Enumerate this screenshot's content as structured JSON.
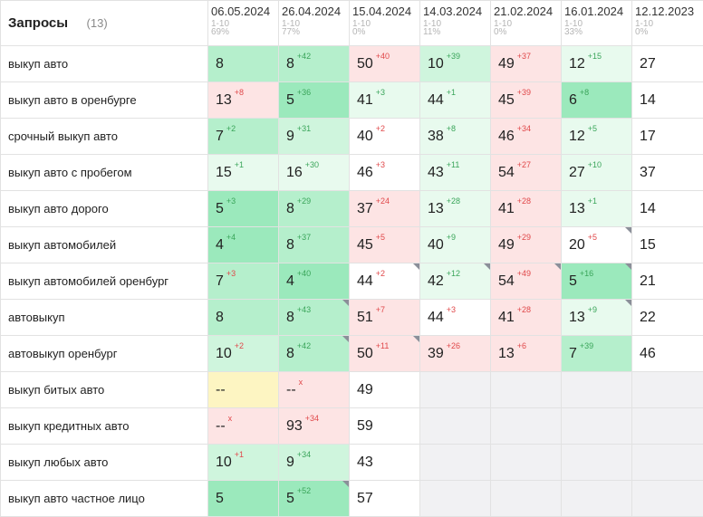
{
  "header": {
    "title": "Запросы",
    "count": "(13)",
    "dates": [
      {
        "date": "06.05.2024",
        "range": "1-10",
        "pct": "69%"
      },
      {
        "date": "26.04.2024",
        "range": "1-10",
        "pct": "77%"
      },
      {
        "date": "15.04.2024",
        "range": "1-10",
        "pct": "0%"
      },
      {
        "date": "14.03.2024",
        "range": "1-10",
        "pct": "11%"
      },
      {
        "date": "21.02.2024",
        "range": "1-10",
        "pct": "0%"
      },
      {
        "date": "16.01.2024",
        "range": "1-10",
        "pct": "33%"
      },
      {
        "date": "12.12.2023",
        "range": "1-10",
        "pct": "0%"
      }
    ]
  },
  "colors": {
    "light_green": "#e8faee",
    "green": "#cff5dd",
    "green_mid": "#b5efcc",
    "green_strong": "#9be9bc",
    "red_bg": "#fde4e4",
    "yellow_bg": "#fdf5c2",
    "empty_bg": "#f1f1f3",
    "delta_up": "#3aa55a",
    "delta_down": "#e0484a"
  },
  "rows": [
    {
      "query": "выкуп авто",
      "cells": [
        {
          "p": "8",
          "c": "g3"
        },
        {
          "p": "8",
          "d": "+42",
          "dir": "up",
          "c": "g3"
        },
        {
          "p": "50",
          "d": "+40",
          "dir": "dn",
          "c": "r"
        },
        {
          "p": "10",
          "d": "+39",
          "dir": "up",
          "c": "g2"
        },
        {
          "p": "49",
          "d": "+37",
          "dir": "dn",
          "c": "r"
        },
        {
          "p": "12",
          "d": "+15",
          "dir": "up",
          "c": "g1"
        },
        {
          "p": "27",
          "c": "w"
        }
      ]
    },
    {
      "query": "выкуп авто в оренбурге",
      "cells": [
        {
          "p": "13",
          "d": "+8",
          "dir": "dn",
          "c": "r"
        },
        {
          "p": "5",
          "d": "+36",
          "dir": "up",
          "c": "g4"
        },
        {
          "p": "41",
          "d": "+3",
          "dir": "up",
          "c": "g1"
        },
        {
          "p": "44",
          "d": "+1",
          "dir": "up",
          "c": "g1"
        },
        {
          "p": "45",
          "d": "+39",
          "dir": "dn",
          "c": "r"
        },
        {
          "p": "6",
          "d": "+8",
          "dir": "up",
          "c": "g4"
        },
        {
          "p": "14",
          "c": "w"
        }
      ]
    },
    {
      "query": "срочный выкуп авто",
      "cells": [
        {
          "p": "7",
          "d": "+2",
          "dir": "up",
          "c": "g3"
        },
        {
          "p": "9",
          "d": "+31",
          "dir": "up",
          "c": "g2"
        },
        {
          "p": "40",
          "d": "+2",
          "dir": "dn",
          "c": "w"
        },
        {
          "p": "38",
          "d": "+8",
          "dir": "up",
          "c": "g1"
        },
        {
          "p": "46",
          "d": "+34",
          "dir": "dn",
          "c": "r"
        },
        {
          "p": "12",
          "d": "+5",
          "dir": "up",
          "c": "g1"
        },
        {
          "p": "17",
          "c": "w"
        }
      ]
    },
    {
      "query": "выкуп авто с пробегом",
      "cells": [
        {
          "p": "15",
          "d": "+1",
          "dir": "up",
          "c": "g1"
        },
        {
          "p": "16",
          "d": "+30",
          "dir": "up",
          "c": "g1"
        },
        {
          "p": "46",
          "d": "+3",
          "dir": "dn",
          "c": "w"
        },
        {
          "p": "43",
          "d": "+11",
          "dir": "up",
          "c": "g1"
        },
        {
          "p": "54",
          "d": "+27",
          "dir": "dn",
          "c": "r"
        },
        {
          "p": "27",
          "d": "+10",
          "dir": "up",
          "c": "g1"
        },
        {
          "p": "37",
          "c": "w"
        }
      ]
    },
    {
      "query": "выкуп авто дорого",
      "cells": [
        {
          "p": "5",
          "d": "+3",
          "dir": "up",
          "c": "g4"
        },
        {
          "p": "8",
          "d": "+29",
          "dir": "up",
          "c": "g3"
        },
        {
          "p": "37",
          "d": "+24",
          "dir": "dn",
          "c": "r"
        },
        {
          "p": "13",
          "d": "+28",
          "dir": "up",
          "c": "g1"
        },
        {
          "p": "41",
          "d": "+28",
          "dir": "dn",
          "c": "r"
        },
        {
          "p": "13",
          "d": "+1",
          "dir": "up",
          "c": "g1"
        },
        {
          "p": "14",
          "c": "w"
        }
      ]
    },
    {
      "query": "выкуп автомобилей",
      "cells": [
        {
          "p": "4",
          "d": "+4",
          "dir": "up",
          "c": "g4"
        },
        {
          "p": "8",
          "d": "+37",
          "dir": "up",
          "c": "g3"
        },
        {
          "p": "45",
          "d": "+5",
          "dir": "dn",
          "c": "r"
        },
        {
          "p": "40",
          "d": "+9",
          "dir": "up",
          "c": "g1"
        },
        {
          "p": "49",
          "d": "+29",
          "dir": "dn",
          "c": "r"
        },
        {
          "p": "20",
          "d": "+5",
          "dir": "dn",
          "c": "w",
          "corner": true
        },
        {
          "p": "15",
          "c": "w"
        }
      ]
    },
    {
      "query": "выкуп автомобилей оренбург",
      "cells": [
        {
          "p": "7",
          "d": "+3",
          "dir": "dn",
          "c": "g3"
        },
        {
          "p": "4",
          "d": "+40",
          "dir": "up",
          "c": "g4"
        },
        {
          "p": "44",
          "d": "+2",
          "dir": "dn",
          "c": "w",
          "corner": true
        },
        {
          "p": "42",
          "d": "+12",
          "dir": "up",
          "c": "g1",
          "corner": true
        },
        {
          "p": "54",
          "d": "+49",
          "dir": "dn",
          "c": "r",
          "corner": true
        },
        {
          "p": "5",
          "d": "+16",
          "dir": "up",
          "c": "g4",
          "corner": true
        },
        {
          "p": "21",
          "c": "w"
        }
      ]
    },
    {
      "query": "автовыкуп",
      "cells": [
        {
          "p": "8",
          "c": "g3"
        },
        {
          "p": "8",
          "d": "+43",
          "dir": "up",
          "c": "g3",
          "corner": true
        },
        {
          "p": "51",
          "d": "+7",
          "dir": "dn",
          "c": "r"
        },
        {
          "p": "44",
          "d": "+3",
          "dir": "dn",
          "c": "w"
        },
        {
          "p": "41",
          "d": "+28",
          "dir": "dn",
          "c": "r"
        },
        {
          "p": "13",
          "d": "+9",
          "dir": "up",
          "c": "g1",
          "corner": true
        },
        {
          "p": "22",
          "c": "w"
        }
      ]
    },
    {
      "query": "автовыкуп оренбург",
      "cells": [
        {
          "p": "10",
          "d": "+2",
          "dir": "dn",
          "c": "g2"
        },
        {
          "p": "8",
          "d": "+42",
          "dir": "up",
          "c": "g3",
          "corner": true
        },
        {
          "p": "50",
          "d": "+11",
          "dir": "dn",
          "c": "r",
          "corner": true
        },
        {
          "p": "39",
          "d": "+26",
          "dir": "dn",
          "c": "r"
        },
        {
          "p": "13",
          "d": "+6",
          "dir": "dn",
          "c": "r"
        },
        {
          "p": "7",
          "d": "+39",
          "dir": "up",
          "c": "g3"
        },
        {
          "p": "46",
          "c": "w"
        }
      ]
    },
    {
      "query": "выкуп битых авто",
      "cells": [
        {
          "p": "--",
          "c": "y"
        },
        {
          "p": "--",
          "d": "x",
          "dir": "dn",
          "c": "r"
        },
        {
          "p": "49",
          "c": "w"
        },
        {
          "p": "",
          "c": "e"
        },
        {
          "p": "",
          "c": "e"
        },
        {
          "p": "",
          "c": "e"
        },
        {
          "p": "",
          "c": "e"
        }
      ]
    },
    {
      "query": "выкуп кредитных авто",
      "cells": [
        {
          "p": "--",
          "d": "x",
          "dir": "dn",
          "c": "r"
        },
        {
          "p": "93",
          "d": "+34",
          "dir": "dn",
          "c": "r"
        },
        {
          "p": "59",
          "c": "w"
        },
        {
          "p": "",
          "c": "e"
        },
        {
          "p": "",
          "c": "e"
        },
        {
          "p": "",
          "c": "e"
        },
        {
          "p": "",
          "c": "e"
        }
      ]
    },
    {
      "query": "выкуп любых авто",
      "cells": [
        {
          "p": "10",
          "d": "+1",
          "dir": "dn",
          "c": "g2"
        },
        {
          "p": "9",
          "d": "+34",
          "dir": "up",
          "c": "g2"
        },
        {
          "p": "43",
          "c": "w"
        },
        {
          "p": "",
          "c": "e"
        },
        {
          "p": "",
          "c": "e"
        },
        {
          "p": "",
          "c": "e"
        },
        {
          "p": "",
          "c": "e"
        }
      ]
    },
    {
      "query": "выкуп авто частное лицо",
      "cells": [
        {
          "p": "5",
          "c": "g4"
        },
        {
          "p": "5",
          "d": "+52",
          "dir": "up",
          "c": "g4",
          "corner": true
        },
        {
          "p": "57",
          "c": "w"
        },
        {
          "p": "",
          "c": "e"
        },
        {
          "p": "",
          "c": "e"
        },
        {
          "p": "",
          "c": "e"
        },
        {
          "p": "",
          "c": "e"
        }
      ]
    }
  ]
}
